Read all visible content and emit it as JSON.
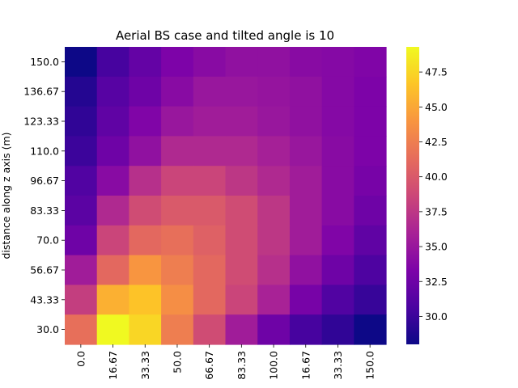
{
  "chart_data": {
    "type": "heatmap",
    "title": "Aerial BS case and tilted angle is 10",
    "xlabel": "",
    "ylabel": "distance along z axis (m)",
    "colormap": "plasma",
    "x_ticks": [
      "0.0",
      "16.67",
      "33.33",
      "50.0",
      "66.67",
      "83.33",
      "100.0",
      "16.67",
      "33.33",
      "150.0"
    ],
    "y_ticks": [
      "150.0",
      "136.67",
      "123.33",
      "110.0",
      "96.67",
      "83.33",
      "70.0",
      "56.67",
      "43.33",
      "30.0"
    ],
    "colorbar": {
      "min": 28.0,
      "max": 49.3,
      "ticks": [
        "47.5",
        "45.0",
        "42.5",
        "40.0",
        "37.5",
        "35.0",
        "32.5",
        "30.0"
      ],
      "tick_values": [
        47.5,
        45.0,
        42.5,
        40.0,
        37.5,
        35.0,
        32.5,
        30.0
      ]
    },
    "values": [
      [
        28.0,
        30.5,
        32.0,
        33.3,
        34.0,
        34.5,
        34.5,
        34.0,
        33.8,
        33.5
      ],
      [
        29.0,
        31.3,
        32.5,
        34.0,
        35.0,
        35.0,
        34.8,
        34.5,
        33.8,
        33.3
      ],
      [
        29.5,
        31.8,
        33.5,
        35.0,
        35.5,
        35.5,
        35.0,
        34.5,
        33.8,
        33.3
      ],
      [
        30.0,
        32.5,
        34.5,
        36.5,
        36.5,
        36.5,
        35.8,
        35.0,
        34.0,
        33.3
      ],
      [
        31.0,
        34.0,
        37.0,
        38.5,
        38.5,
        37.5,
        36.5,
        35.5,
        34.0,
        33.0
      ],
      [
        31.5,
        36.5,
        39.0,
        40.0,
        40.0,
        39.0,
        37.5,
        35.5,
        34.0,
        32.5
      ],
      [
        32.5,
        38.5,
        41.0,
        41.5,
        40.5,
        39.0,
        37.5,
        35.5,
        33.5,
        31.8
      ],
      [
        35.5,
        41.0,
        44.0,
        42.5,
        41.0,
        39.0,
        37.0,
        34.5,
        32.5,
        30.8
      ],
      [
        38.0,
        45.5,
        46.5,
        43.5,
        41.0,
        38.5,
        36.0,
        33.0,
        31.0,
        29.8
      ],
      [
        41.5,
        49.3,
        47.5,
        42.5,
        39.0,
        35.5,
        32.5,
        30.5,
        29.5,
        28.0
      ]
    ]
  }
}
